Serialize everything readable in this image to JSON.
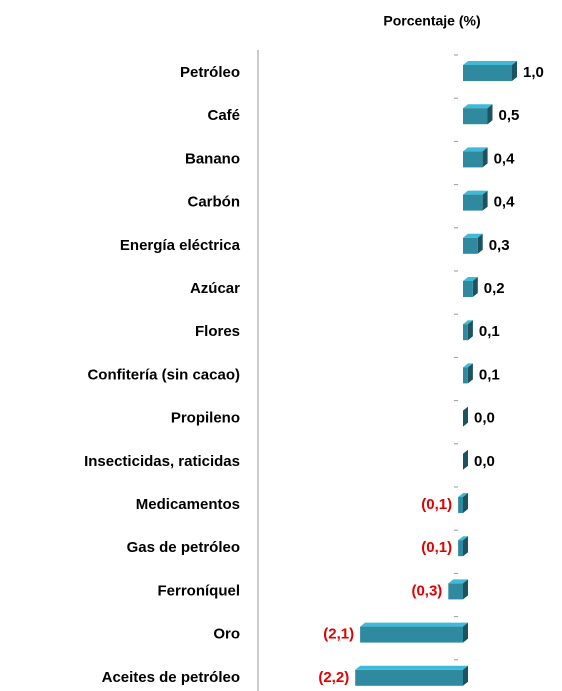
{
  "chart_data": {
    "type": "bar",
    "orientation": "horizontal",
    "title": "Porcentaje (%)",
    "categories": [
      "Petróleo",
      "Café",
      "Banano",
      "Carbón",
      "Energía eléctrica",
      "Azúcar",
      "Flores",
      "Confitería (sin cacao)",
      "Propileno ",
      "Insecticidas, raticidas",
      "Medicamentos",
      "Gas de petróleo",
      "Ferroníquel",
      "Oro",
      "Aceites de petróleo"
    ],
    "values": [
      1.0,
      0.5,
      0.4,
      0.4,
      0.3,
      0.2,
      0.1,
      0.1,
      0.0,
      0.0,
      -0.1,
      -0.1,
      -0.3,
      -2.1,
      -2.2
    ],
    "value_labels": [
      "1,0",
      "0,5",
      "0,4",
      "0,4",
      "0,3",
      "0,2",
      "0,1",
      "0,1",
      "0,0",
      "0,0",
      "(0,1)",
      "(0,1)",
      "(0,3)",
      "(2,1)",
      "(2,2)"
    ],
    "color": "#2f8aa0",
    "label_colors": {
      "positive": "#000000",
      "negative": "#e00000"
    }
  }
}
